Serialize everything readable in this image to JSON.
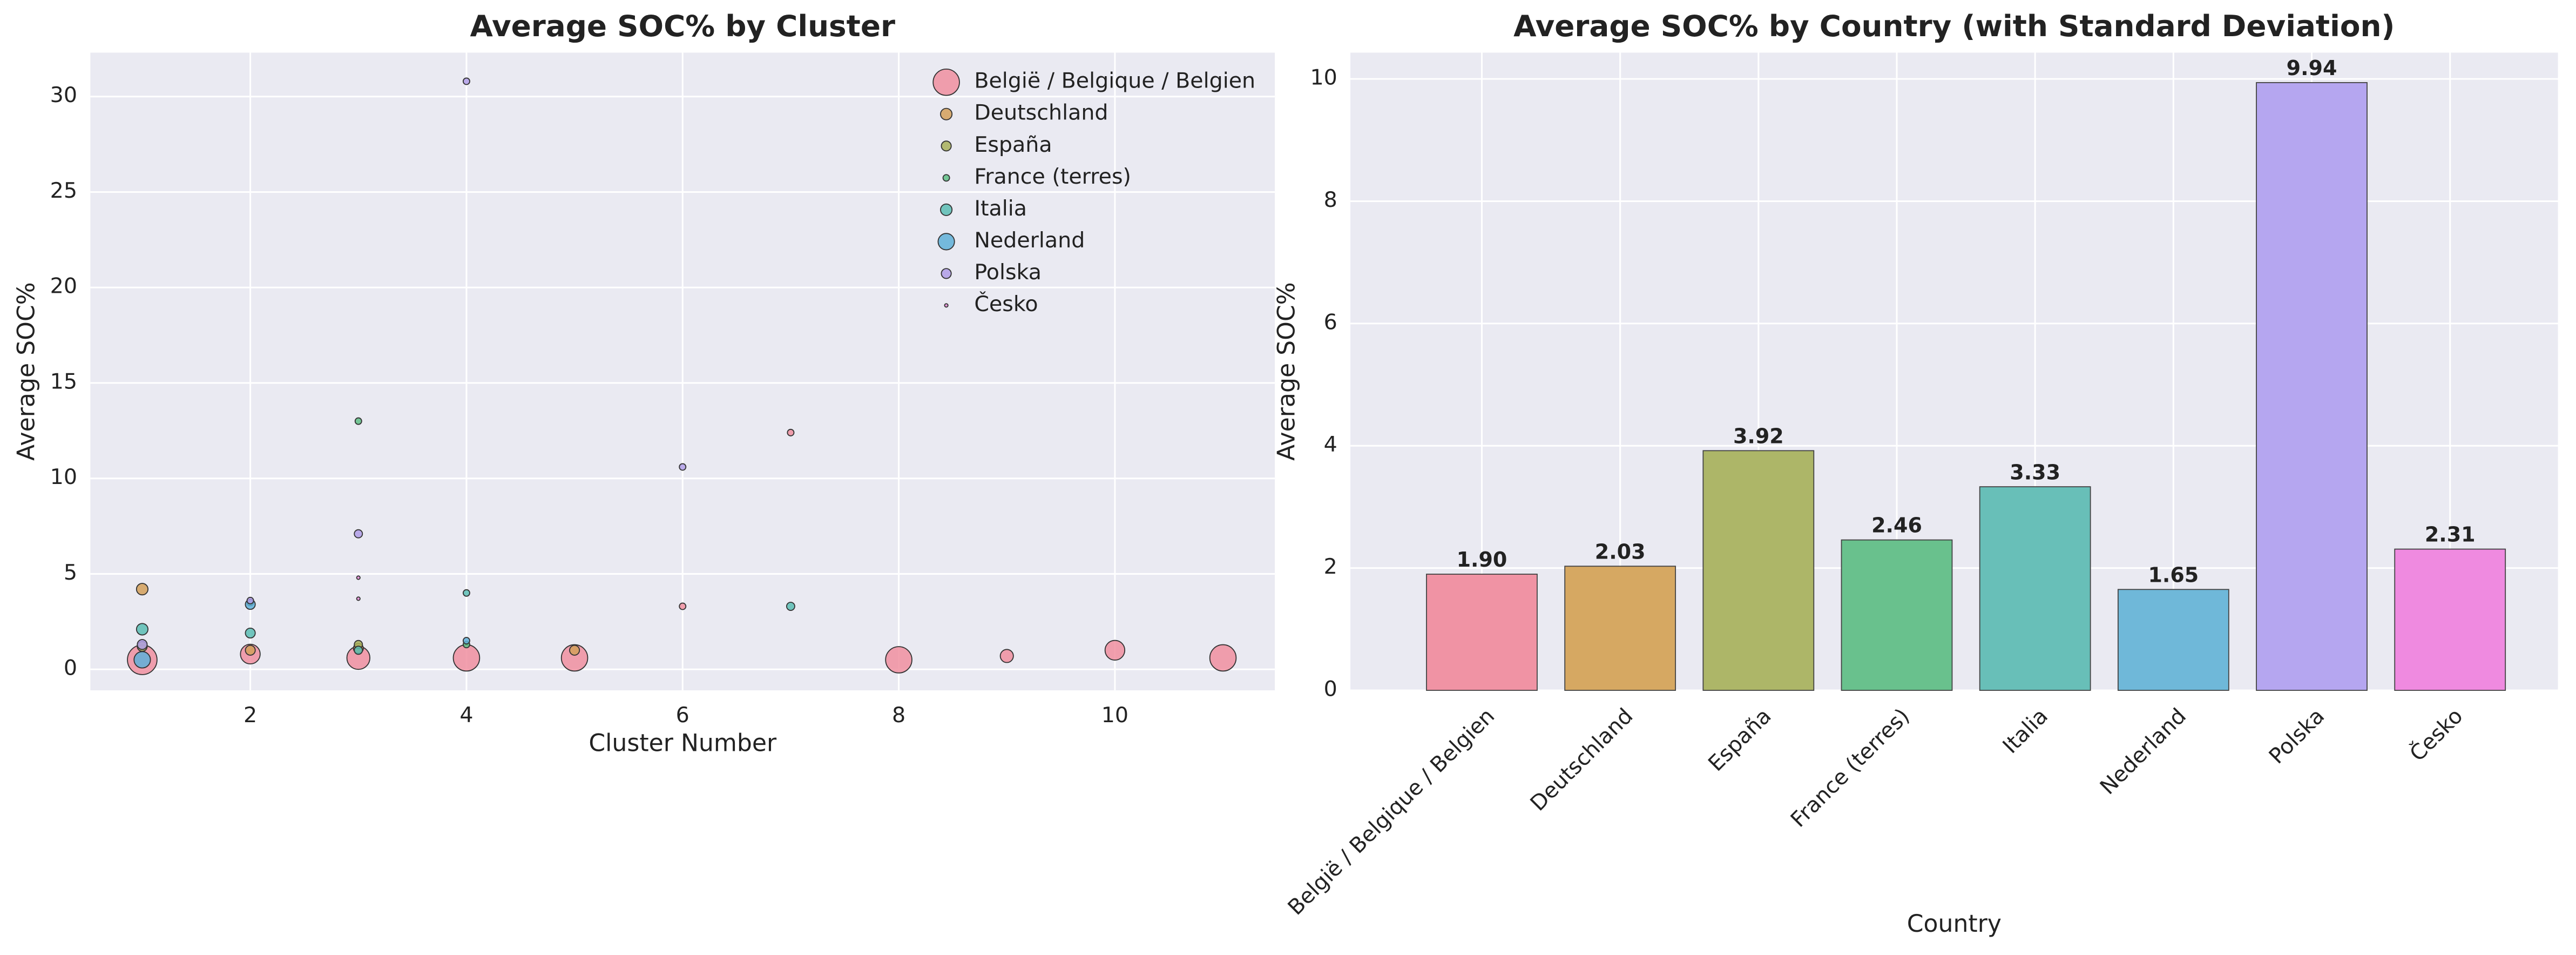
{
  "chart_data": [
    {
      "type": "scatter",
      "title": "Average SOC% by Cluster",
      "xlabel": "Cluster Number",
      "ylabel": "Average SOC%",
      "xlim": [
        0.52,
        11.48
      ],
      "ylim": [
        -1.1,
        32.3
      ],
      "xticks": [
        2,
        4,
        6,
        8,
        10
      ],
      "yticks": [
        0,
        5,
        10,
        15,
        20,
        25,
        30
      ],
      "grid": true,
      "legend": "upper right",
      "series": [
        {
          "name": "België / Belgique / Belgien",
          "color": "#f08fa0",
          "x": [
            1,
            2,
            3,
            4,
            5,
            6,
            7,
            8,
            9,
            10,
            11
          ],
          "values": [
            0.5,
            0.8,
            0.6,
            0.6,
            0.6,
            3.3,
            12.4,
            0.5,
            0.7,
            1.0,
            0.6
          ],
          "sizes": [
            225,
            100,
            136,
            178,
            178,
            11,
            11,
            178,
            44,
            100,
            178
          ]
        },
        {
          "name": "Deutschland",
          "color": "#d4a05a",
          "x": [
            1,
            2,
            3,
            5
          ],
          "values": [
            4.2,
            1.0,
            1.1,
            1.0
          ],
          "sizes": [
            34,
            25,
            25,
            25
          ]
        },
        {
          "name": "España",
          "color": "#a8b05a",
          "x": [
            1,
            3
          ],
          "values": [
            1.2,
            1.3
          ],
          "sizes": [
            25,
            17
          ]
        },
        {
          "name": "France (terres)",
          "color": "#5fbf86",
          "x": [
            2,
            3,
            4
          ],
          "values": [
            3.5,
            13.0,
            1.3
          ],
          "sizes": [
            11,
            11,
            11
          ]
        },
        {
          "name": "Italia",
          "color": "#5bbdb4",
          "x": [
            1,
            2,
            3,
            4,
            7
          ],
          "values": [
            2.1,
            1.9,
            1.0,
            4.0,
            3.3
          ],
          "sizes": [
            34,
            25,
            17,
            11,
            17
          ]
        },
        {
          "name": "Nederland",
          "color": "#5fb0d8",
          "x": [
            1,
            2,
            4
          ],
          "values": [
            0.5,
            3.4,
            1.5
          ],
          "sizes": [
            69,
            25,
            11
          ]
        },
        {
          "name": "Polska",
          "color": "#b09ee8",
          "x": [
            1,
            2,
            3,
            4,
            6
          ],
          "values": [
            1.3,
            3.6,
            7.1,
            30.8,
            10.6
          ],
          "sizes": [
            25,
            11,
            17,
            11,
            11
          ]
        },
        {
          "name": "Česko",
          "color": "#e889d8",
          "x": [
            3,
            3
          ],
          "values": [
            4.8,
            3.7
          ],
          "sizes": [
            3,
            3
          ]
        }
      ]
    },
    {
      "type": "bar",
      "title": "Average SOC% by Country (with Standard Deviation)",
      "xlabel": "Country",
      "ylabel": "Average SOC%",
      "ylim": [
        0,
        10.43
      ],
      "yticks": [
        0,
        2,
        4,
        6,
        8,
        10
      ],
      "grid": true,
      "categories": [
        "België / Belgique / Belgien",
        "Deutschland",
        "España",
        "France (terres)",
        "Italia",
        "Nederland",
        "Polska",
        "Česko"
      ],
      "values": [
        1.9,
        2.03,
        3.92,
        2.46,
        3.33,
        1.65,
        9.94,
        2.31
      ],
      "value_labels": [
        "1.90",
        "2.03",
        "3.92",
        "2.46",
        "3.33",
        "1.65",
        "9.94",
        "2.31"
      ],
      "colors": [
        "#f093a4",
        "#d6a862",
        "#adb668",
        "#69c18d",
        "#68bfb8",
        "#6fb8d9",
        "#b5a6f0",
        "#ef8ae0"
      ]
    }
  ]
}
